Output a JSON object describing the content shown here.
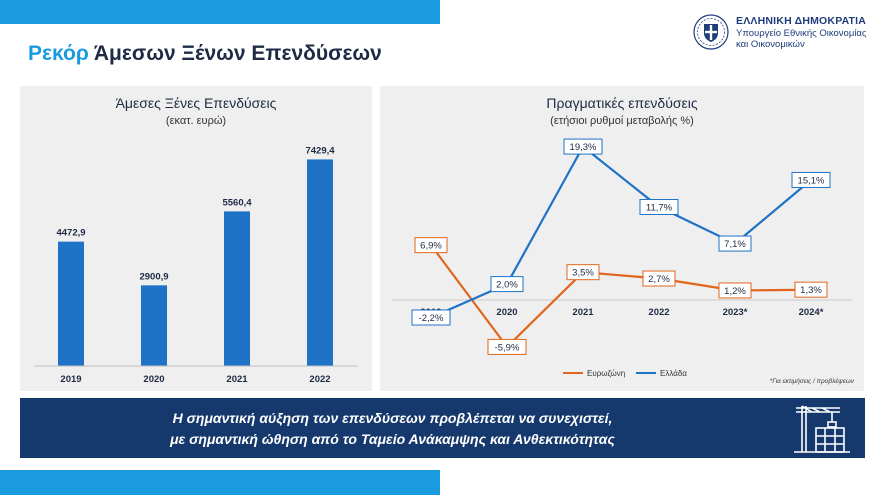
{
  "header": {
    "title_accent": "Ρεκόρ",
    "title_rest": " Άμεσων Ξένων Επενδύσεων"
  },
  "logo": {
    "line1": "ΕΛΛΗΝΙΚΗ ΔΗΜΟΚΡΑΤΙΑ",
    "line2": "Υπουργείο Εθνικής Οικονομίας",
    "line3": "και Οικονομικών"
  },
  "banner": {
    "line1": "Η σημαντική αύξηση των επενδύσεων προβλέπεται να συνεχιστεί,",
    "line2": "με σημαντική ώθηση από το Ταμείο Ανάκαμψης και Ανθεκτικότητας",
    "icon": "crane-building-icon"
  },
  "colors": {
    "accent": "#1a9be0",
    "navy": "#16396d",
    "bar": "#1e73c7",
    "greece": "#1e73c7",
    "eurozone": "#e0661d",
    "panel": "#efefef"
  },
  "chart_data": [
    {
      "type": "bar",
      "title": "Άμεσες Ξένες Επενδύσεις",
      "subtitle": "(εκατ. ευρώ)",
      "categories": [
        "2019",
        "2020",
        "2021",
        "2022"
      ],
      "values": [
        4472.9,
        2900.9,
        5560.4,
        7429.4
      ],
      "value_labels": [
        "4472,9",
        "2900,9",
        "5560,4",
        "7429,4"
      ],
      "ylim": [
        0,
        8200
      ],
      "grid": false
    },
    {
      "type": "line",
      "title": "Πραγματικές επενδύσεις",
      "subtitle": "(ετήσιοι ρυθμοί μεταβολής %)",
      "categories": [
        "2019",
        "2020",
        "2021",
        "2022",
        "2023*",
        "2024*"
      ],
      "series": [
        {
          "name": "Ευρωζώνη",
          "color": "#e0661d",
          "values": [
            6.9,
            -5.9,
            3.5,
            2.7,
            1.2,
            1.3
          ],
          "labels": [
            "6,9%",
            "-5,9%",
            "3,5%",
            "2,7%",
            "1,2%",
            "1,3%"
          ]
        },
        {
          "name": "Ελλάδα",
          "color": "#1e73c7",
          "values": [
            -2.2,
            2.0,
            19.3,
            11.7,
            7.1,
            15.1
          ],
          "labels": [
            "-2,2%",
            "2,0%",
            "19,3%",
            "11,7%",
            "7,1%",
            "15,1%"
          ]
        }
      ],
      "ylim": [
        -7,
        21
      ],
      "legend_position": "bottom",
      "footnote": "*Για εκτιμήσεις / προβλέψεων"
    }
  ]
}
